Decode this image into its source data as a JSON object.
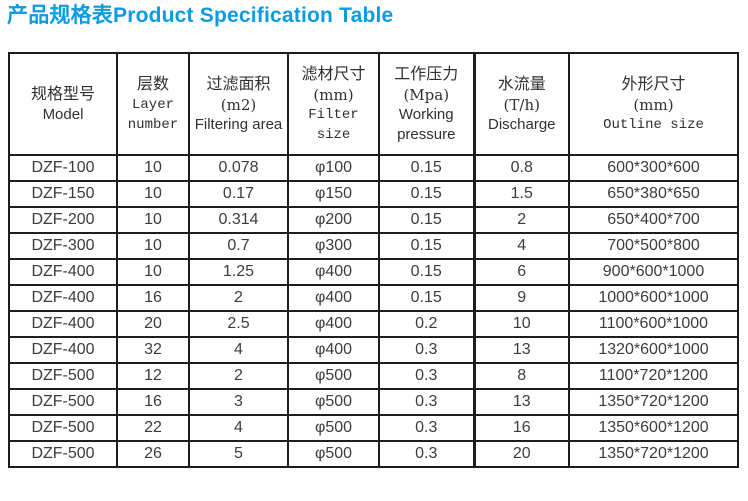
{
  "title": "产品规格表Product Specification Table",
  "accent_color": "#0a9be0",
  "table": {
    "columns": [
      {
        "zh": "规格型号",
        "unit": "",
        "en": "Model"
      },
      {
        "zh": "层数",
        "unit": "",
        "en": "Layer number"
      },
      {
        "zh": "过滤面积",
        "unit": "(m2)",
        "en": "Filtering area"
      },
      {
        "zh": "滤材尺寸",
        "unit": "(mm)",
        "en": "Filter size"
      },
      {
        "zh": "工作压力",
        "unit": "(Mpa)",
        "en": "Working pressure"
      },
      {
        "zh": "水流量",
        "unit": "(T/h)",
        "en": "Discharge"
      },
      {
        "zh": "外形尺寸",
        "unit": "(mm)",
        "en": "Outline size"
      }
    ],
    "rows": [
      [
        "DZF-100",
        "10",
        "0.078",
        "φ100",
        "0.15",
        "0.8",
        "600*300*600"
      ],
      [
        "DZF-150",
        "10",
        "0.17",
        "φ150",
        "0.15",
        "1.5",
        "650*380*650"
      ],
      [
        "DZF-200",
        "10",
        "0.314",
        "φ200",
        "0.15",
        "2",
        "650*400*700"
      ],
      [
        "DZF-300",
        "10",
        "0.7",
        "φ300",
        "0.15",
        "4",
        "700*500*800"
      ],
      [
        "DZF-400",
        "10",
        "1.25",
        "φ400",
        "0.15",
        "6",
        "900*600*1000"
      ],
      [
        "DZF-400",
        "16",
        "2",
        "φ400",
        "0.15",
        "9",
        "1000*600*1000"
      ],
      [
        "DZF-400",
        "20",
        "2.5",
        "φ400",
        "0.2",
        "10",
        "1100*600*1000"
      ],
      [
        "DZF-400",
        "32",
        "4",
        "φ400",
        "0.3",
        "13",
        "1320*600*1000"
      ],
      [
        "DZF-500",
        "12",
        "2",
        "φ500",
        "0.3",
        "8",
        "1100*720*1200"
      ],
      [
        "DZF-500",
        "16",
        "3",
        "φ500",
        "0.3",
        "13",
        "1350*720*1200"
      ],
      [
        "DZF-500",
        "22",
        "4",
        "φ500",
        "0.3",
        "16",
        "1350*600*1200"
      ],
      [
        "DZF-500",
        "26",
        "5",
        "φ500",
        "0.3",
        "20",
        "1350*720*1200"
      ]
    ]
  }
}
